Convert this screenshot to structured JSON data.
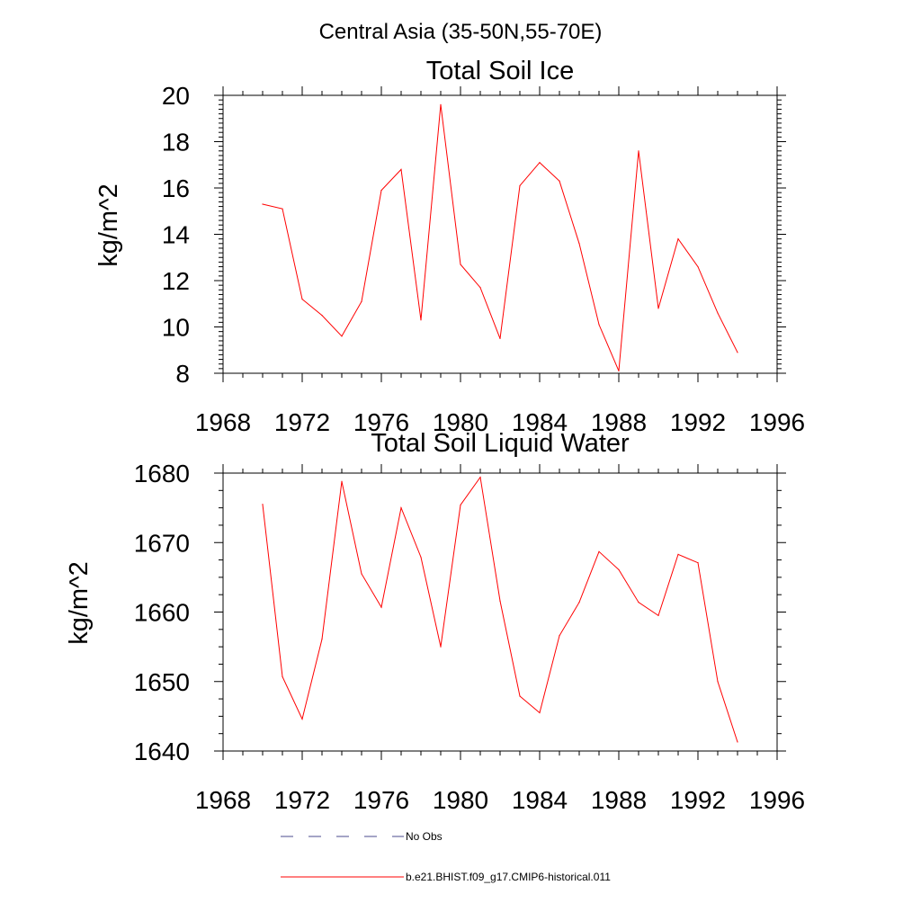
{
  "figure": {
    "title": "Central Asia (35-50N,55-70E)"
  },
  "chart_data": [
    {
      "type": "line",
      "title": "Total Soil Ice",
      "xlabel": "",
      "ylabel": "kg/m^2",
      "xlim": [
        1968,
        1996
      ],
      "ylim": [
        8,
        20
      ],
      "xticks": [
        1968,
        1972,
        1976,
        1980,
        1984,
        1988,
        1992,
        1996
      ],
      "yticks": [
        8,
        10,
        12,
        14,
        16,
        18,
        20
      ],
      "grid": false,
      "series": [
        {
          "color": "#ff0000",
          "x": [
            1970,
            1971,
            1972,
            1973,
            1974,
            1975,
            1976,
            1977,
            1978,
            1979,
            1980,
            1981,
            1982,
            1983,
            1984,
            1985,
            1986,
            1987,
            1988,
            1989,
            1990,
            1991,
            1992,
            1993,
            1994
          ],
          "y": [
            15.3,
            15.1,
            11.2,
            10.5,
            9.6,
            11.1,
            15.9,
            16.8,
            10.3,
            19.6,
            12.7,
            11.7,
            9.5,
            16.1,
            17.1,
            16.3,
            13.6,
            10.1,
            8.1,
            17.6,
            10.8,
            13.8,
            12.6,
            10.6,
            8.9
          ]
        }
      ]
    },
    {
      "type": "line",
      "title": "Total Soil Liquid Water",
      "xlabel": "",
      "ylabel": "kg/m^2",
      "xlim": [
        1968,
        1996
      ],
      "ylim": [
        1640,
        1680
      ],
      "xticks": [
        1968,
        1972,
        1976,
        1980,
        1984,
        1988,
        1992,
        1996
      ],
      "yticks": [
        1640,
        1650,
        1660,
        1670,
        1680
      ],
      "grid": false,
      "series": [
        {
          "color": "#ff0000",
          "x": [
            1970,
            1971,
            1972,
            1973,
            1974,
            1975,
            1976,
            1977,
            1978,
            1979,
            1980,
            1981,
            1982,
            1983,
            1984,
            1985,
            1986,
            1987,
            1988,
            1989,
            1990,
            1991,
            1992,
            1993,
            1994
          ],
          "y": [
            1675.5,
            1650.7,
            1644.6,
            1656.1,
            1678.8,
            1665.5,
            1660.7,
            1675.0,
            1667.9,
            1655.0,
            1675.4,
            1679.4,
            1661.6,
            1647.9,
            1645.5,
            1656.6,
            1661.4,
            1668.7,
            1666.1,
            1661.4,
            1659.5,
            1668.3,
            1667.1,
            1650.0,
            1641.3
          ]
        }
      ]
    }
  ],
  "legend": {
    "placement": "bottom",
    "entries": [
      {
        "label": "No Obs",
        "color": "#4b4b8c",
        "style": "dashed"
      },
      {
        "label": "b.e21.BHIST.f09_g17.CMIP6-historical.011",
        "color": "#ff0000",
        "style": "solid"
      }
    ]
  }
}
